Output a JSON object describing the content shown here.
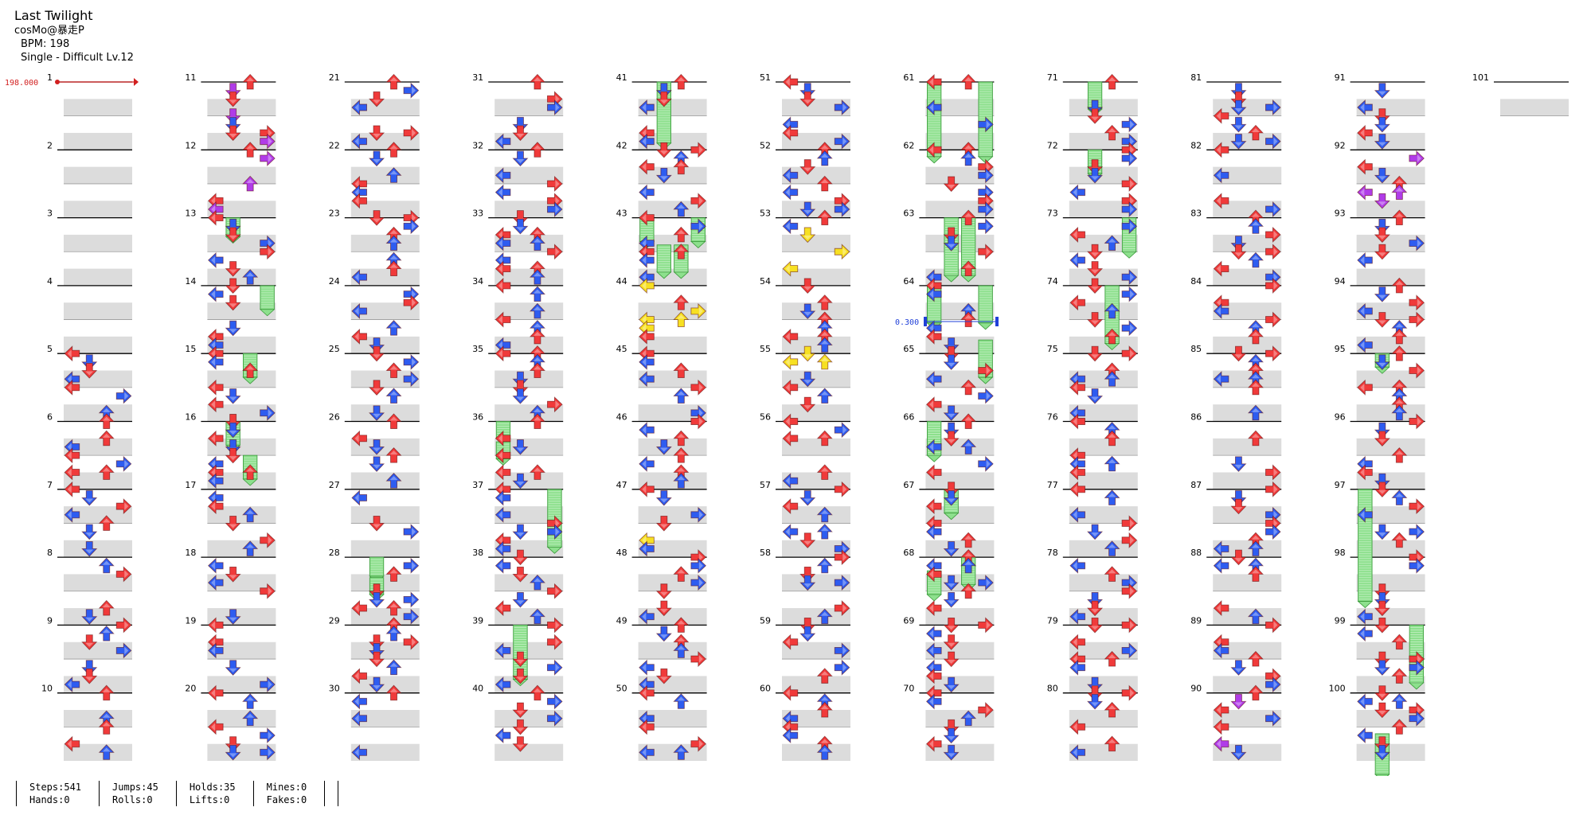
{
  "song": {
    "title": "Last Twilight",
    "artist": "cosMo@暴走P",
    "bpm_text": "BPM: 198",
    "difficulty_text": "Single - Difficult Lv.12"
  },
  "chart": {
    "total_measures": 101,
    "measures_per_column": 10,
    "bpm_change_label": "198.000",
    "stop_label": "0.300",
    "stop_measure": 64.5,
    "colors": {
      "quarter": "#f03a3a",
      "eighth": "#2e5cf0",
      "sixteenth": "#f7e022",
      "twelfth": "#b03ce8",
      "hold": "#8de08d",
      "bpm": "#d22020",
      "stop": "#2040d8"
    }
  },
  "stats": {
    "steps": "Steps:541",
    "hands": "Hands:0",
    "jumps": "Jumps:45",
    "rolls": "Rolls:0",
    "holds": "Holds:35",
    "lifts": "Lifts:0",
    "mines": "Mines:0",
    "fakes": "Fakes:0"
  }
}
